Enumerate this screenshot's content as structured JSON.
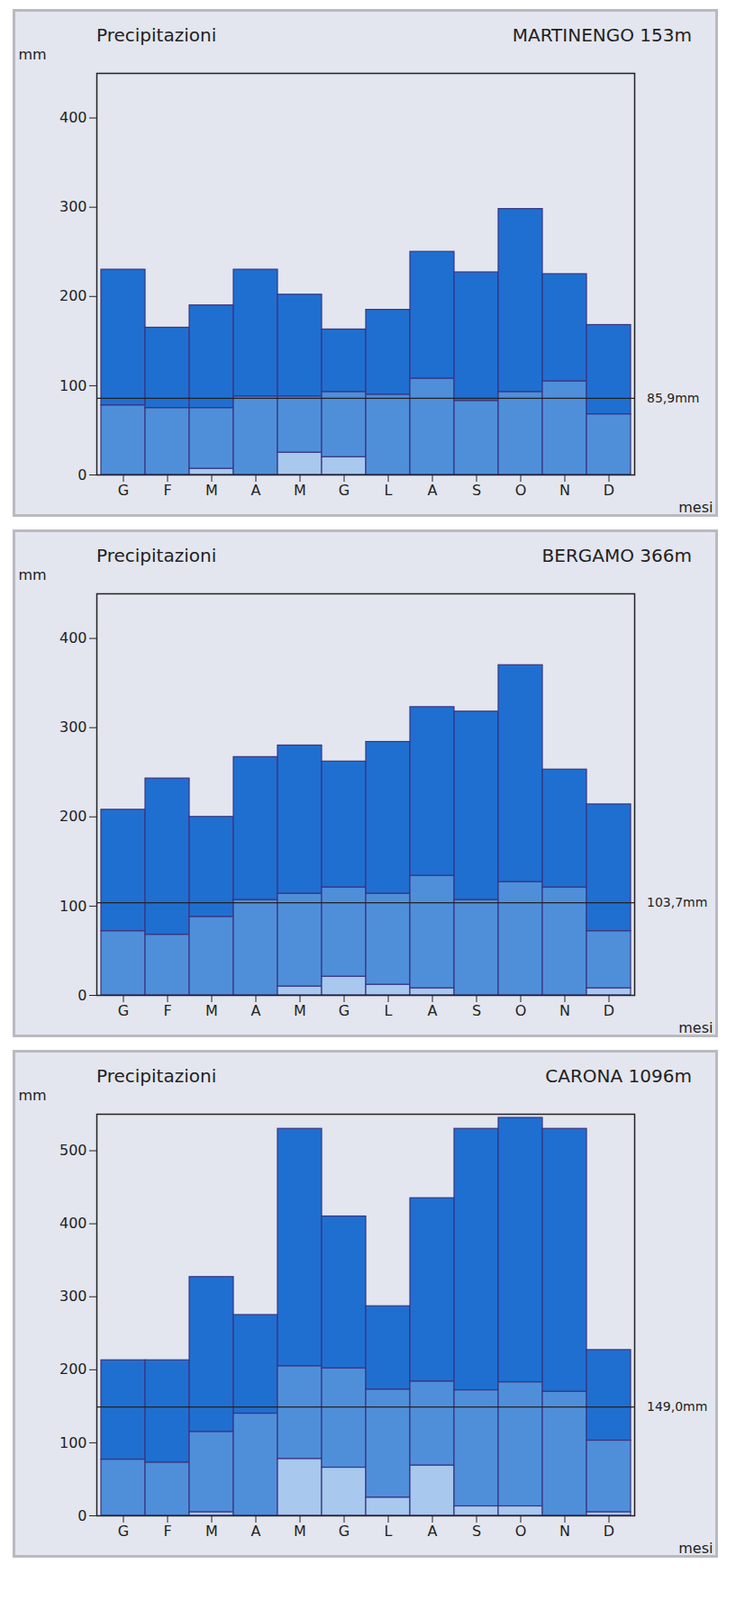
{
  "chart_data": [
    {
      "type": "bar",
      "stacked": true,
      "title": "Precipitazioni",
      "subtitle": "MARTINENGO 153m",
      "y_label": "mm",
      "x_label": "mesi",
      "categories": [
        "G",
        "F",
        "M",
        "A",
        "M",
        "G",
        "L",
        "A",
        "S",
        "O",
        "N",
        "D"
      ],
      "series": [
        {
          "color": "#a8c8ee",
          "values": [
            0,
            0,
            7,
            0,
            25,
            20,
            0,
            0,
            0,
            0,
            0,
            0
          ]
        },
        {
          "color": "#4f8fda",
          "values": [
            78,
            75,
            68,
            88,
            63,
            73,
            90,
            108,
            83,
            93,
            105,
            68
          ]
        },
        {
          "color": "#1f6fd1",
          "values": [
            152,
            90,
            115,
            142,
            114,
            70,
            95,
            142,
            144,
            205,
            120,
            100
          ]
        }
      ],
      "ylim": [
        0,
        450
      ],
      "yticks": [
        0,
        100,
        200,
        300,
        400
      ],
      "annotations": [
        {
          "value": 85.9,
          "label": "85,9mm"
        }
      ]
    },
    {
      "type": "bar",
      "stacked": true,
      "title": "Precipitazioni",
      "subtitle": "BERGAMO 366m",
      "y_label": "mm",
      "x_label": "mesi",
      "categories": [
        "G",
        "F",
        "M",
        "A",
        "M",
        "G",
        "L",
        "A",
        "S",
        "O",
        "N",
        "D"
      ],
      "series": [
        {
          "color": "#a8c8ee",
          "values": [
            0,
            0,
            0,
            0,
            10,
            21,
            12,
            8,
            0,
            0,
            0,
            8
          ]
        },
        {
          "color": "#4f8fda",
          "values": [
            72,
            68,
            88,
            107,
            104,
            100,
            102,
            126,
            107,
            127,
            121,
            64
          ]
        },
        {
          "color": "#1f6fd1",
          "values": [
            136,
            175,
            112,
            160,
            166,
            141,
            170,
            189,
            211,
            243,
            132,
            142
          ]
        }
      ],
      "ylim": [
        0,
        450
      ],
      "yticks": [
        0,
        100,
        200,
        300,
        400
      ],
      "annotations": [
        {
          "value": 103.7,
          "label": "103,7mm"
        }
      ]
    },
    {
      "type": "bar",
      "stacked": true,
      "title": "Precipitazioni",
      "subtitle": "CARONA 1096m",
      "y_label": "mm",
      "x_label": "mesi",
      "categories": [
        "G",
        "F",
        "M",
        "A",
        "M",
        "G",
        "L",
        "A",
        "S",
        "O",
        "N",
        "D"
      ],
      "series": [
        {
          "color": "#a8c8ee",
          "values": [
            0,
            0,
            5,
            0,
            78,
            66,
            25,
            69,
            13,
            13,
            0,
            5
          ]
        },
        {
          "color": "#4f8fda",
          "values": [
            77,
            73,
            110,
            140,
            127,
            136,
            148,
            115,
            159,
            170,
            170,
            98
          ]
        },
        {
          "color": "#1f6fd1",
          "values": [
            136,
            140,
            212,
            135,
            325,
            208,
            114,
            251,
            358,
            362,
            360,
            124
          ]
        }
      ],
      "ylim": [
        0,
        550
      ],
      "yticks": [
        0,
        100,
        200,
        300,
        400,
        500
      ],
      "annotations": [
        {
          "value": 149.0,
          "label": "149,0mm"
        }
      ]
    }
  ]
}
